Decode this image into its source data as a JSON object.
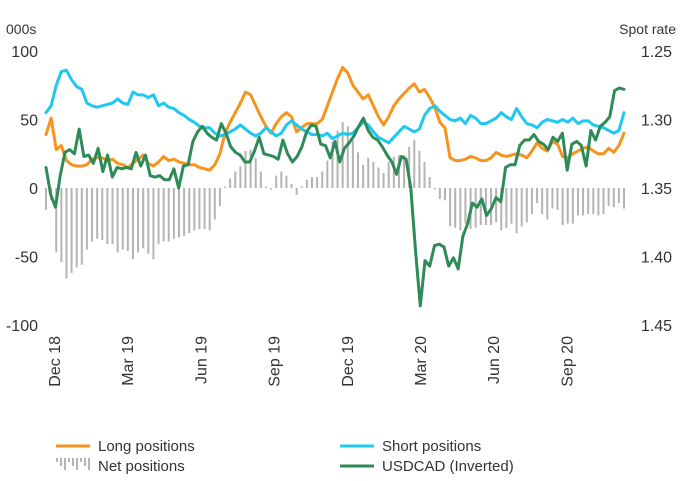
{
  "chart_data": {
    "type": "line",
    "left_unit": "000s",
    "right_unit": "Spot rate",
    "left_axis": {
      "ylim": [
        -100,
        100
      ],
      "ticks": [
        100,
        50,
        0,
        -50,
        -100
      ],
      "labels": [
        "100",
        "50",
        "0",
        "-50",
        "-100"
      ]
    },
    "right_axis": {
      "ylim": [
        1.25,
        1.45
      ],
      "inverted": true,
      "ticks": [
        1.25,
        1.3,
        1.35,
        1.4,
        1.45
      ],
      "labels": [
        "1.25",
        "1.30",
        "1.35",
        "1.40",
        "1.45"
      ]
    },
    "x_labels": [
      "Dec 18",
      "Mar 19",
      "Jun 19",
      "Sep 19",
      "Dec 19",
      "Mar 20",
      "Jun 20",
      "Sep 20"
    ],
    "grid": false,
    "legend_position": "bottom",
    "colors": {
      "long": "#f7941d",
      "short": "#1ec8f0",
      "net": "#b4b4b4",
      "usdcad": "#2e8b57"
    },
    "series": [
      {
        "name": "Long positions",
        "axis": "left",
        "style": "line",
        "values": [
          39,
          51,
          28,
          31,
          20,
          17,
          16,
          16,
          17,
          21,
          22,
          22,
          20,
          21,
          18,
          17,
          15,
          18,
          21,
          24,
          18,
          16,
          19,
          23,
          20,
          21,
          19,
          18,
          17,
          17,
          15,
          14,
          13,
          17,
          25,
          40,
          48,
          55,
          62,
          70,
          68,
          60,
          52,
          45,
          40,
          47,
          52,
          55,
          52,
          41,
          44,
          47,
          47,
          47,
          50,
          60,
          70,
          80,
          88,
          84,
          75,
          70,
          65,
          68,
          60,
          52,
          46,
          52,
          60,
          65,
          69,
          73,
          76,
          70,
          72,
          66,
          59,
          48,
          44,
          22,
          20,
          20,
          21,
          23,
          22,
          20,
          20,
          22,
          26,
          24,
          23,
          24,
          25,
          24,
          22,
          27,
          33,
          29,
          27,
          34,
          32,
          23,
          22,
          25,
          27,
          29,
          30,
          27,
          25,
          25,
          29,
          26,
          31,
          40
        ]
      },
      {
        "name": "Short positions",
        "axis": "left",
        "style": "line",
        "values": [
          55,
          60,
          75,
          85,
          86,
          79,
          74,
          72,
          62,
          60,
          59,
          60,
          61,
          62,
          65,
          62,
          61,
          70,
          68,
          68,
          66,
          68,
          60,
          62,
          59,
          58,
          55,
          53,
          50,
          48,
          45,
          44,
          44,
          40,
          38,
          39,
          41,
          43,
          46,
          43,
          40,
          38,
          40,
          44,
          41,
          38,
          40,
          46,
          49,
          46,
          43,
          41,
          39,
          39,
          38,
          40,
          36,
          38,
          40,
          39,
          40,
          44,
          48,
          46,
          41,
          37,
          35,
          33,
          37,
          41,
          45,
          43,
          41,
          43,
          53,
          58,
          60,
          56,
          53,
          50,
          49,
          51,
          47,
          53,
          51,
          47,
          47,
          49,
          51,
          55,
          52,
          50,
          58,
          52,
          47,
          46,
          44,
          48,
          50,
          49,
          48,
          50,
          48,
          51,
          47,
          49,
          49,
          46,
          45,
          44,
          42,
          40,
          42,
          55
        ]
      },
      {
        "name": "Net positions",
        "axis": "left",
        "style": "bar",
        "values": [
          -16,
          -9,
          -47,
          -54,
          -66,
          -62,
          -58,
          -56,
          -45,
          -39,
          -37,
          -38,
          -41,
          -41,
          -47,
          -45,
          -46,
          -52,
          -47,
          -44,
          -48,
          -52,
          -41,
          -39,
          -39,
          -37,
          -36,
          -35,
          -33,
          -31,
          -30,
          -30,
          -31,
          -23,
          -13,
          1,
          7,
          12,
          16,
          27,
          28,
          22,
          12,
          1,
          -1,
          9,
          12,
          9,
          3,
          -5,
          1,
          6,
          8,
          8,
          12,
          20,
          34,
          42,
          48,
          45,
          35,
          26,
          17,
          22,
          19,
          15,
          11,
          19,
          23,
          24,
          24,
          30,
          35,
          27,
          19,
          8,
          -1,
          -8,
          -9,
          -28,
          -29,
          -31,
          -26,
          -30,
          -29,
          -27,
          -27,
          -27,
          -25,
          -31,
          -29,
          -26,
          -33,
          -28,
          -25,
          -19,
          -11,
          -19,
          -23,
          -15,
          -16,
          -27,
          -26,
          -26,
          -20,
          -20,
          -19,
          -19,
          -20,
          -19,
          -13,
          -14,
          -11,
          -15
        ]
      },
      {
        "name": "USDCAD (Inverted)",
        "axis": "right",
        "style": "line",
        "values": [
          1.335,
          1.355,
          1.364,
          1.341,
          1.324,
          1.322,
          1.325,
          1.307,
          1.327,
          1.326,
          1.332,
          1.321,
          1.338,
          1.326,
          1.342,
          1.335,
          1.336,
          1.335,
          1.336,
          1.324,
          1.334,
          1.326,
          1.341,
          1.342,
          1.341,
          1.344,
          1.344,
          1.336,
          1.35,
          1.334,
          1.333,
          1.316,
          1.309,
          1.305,
          1.31,
          1.313,
          1.315,
          1.303,
          1.31,
          1.32,
          1.324,
          1.326,
          1.331,
          1.331,
          1.323,
          1.313,
          1.325,
          1.326,
          1.327,
          1.329,
          1.315,
          1.325,
          1.331,
          1.327,
          1.32,
          1.309,
          1.304,
          1.305,
          1.318,
          1.319,
          1.328,
          1.316,
          1.331,
          1.321,
          1.317,
          1.312,
          1.305,
          1.299,
          1.308,
          1.313,
          1.315,
          1.32,
          1.326,
          1.331,
          1.34,
          1.327,
          1.329,
          1.35,
          1.396,
          1.436,
          1.403,
          1.407,
          1.392,
          1.391,
          1.393,
          1.407,
          1.401,
          1.409,
          1.385,
          1.376,
          1.361,
          1.364,
          1.358,
          1.37,
          1.365,
          1.357,
          1.36,
          1.335,
          1.333,
          1.333,
          1.319,
          1.315,
          1.315,
          1.311,
          1.316,
          1.318,
          1.322,
          1.313,
          1.316,
          1.31,
          1.337,
          1.318,
          1.316,
          1.319,
          1.334,
          1.308,
          1.315,
          1.305,
          1.302,
          1.298,
          1.279,
          1.277,
          1.278
        ]
      }
    ]
  }
}
